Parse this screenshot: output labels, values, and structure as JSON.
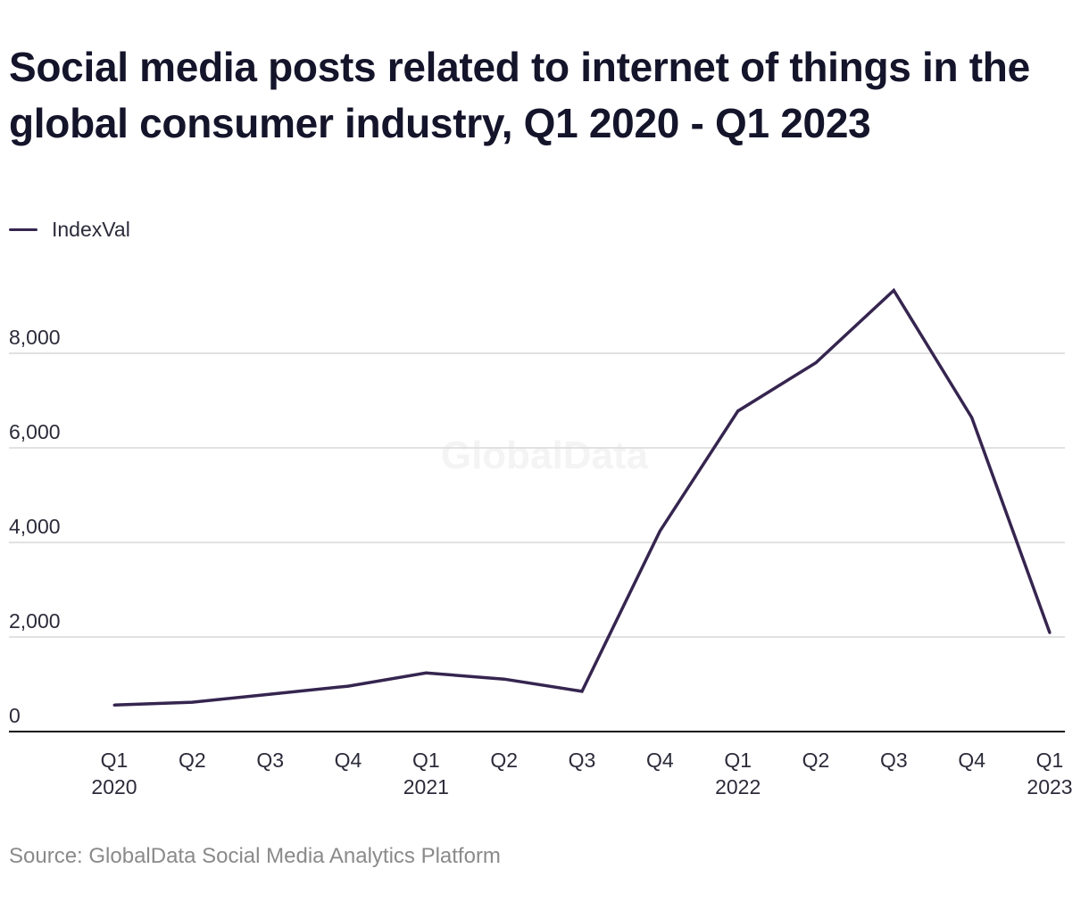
{
  "title": "Social media posts related to internet of things in the global consumer industry, Q1 2020 - Q1 2023",
  "legend": {
    "label": "IndexVal"
  },
  "watermark": "GlobalData",
  "source": "Source: GlobalData Social Media Analytics Platform",
  "colors": {
    "line": "#35254f",
    "grid": "#d9d9d9",
    "axis": "#111111",
    "tick_text": "#2b2b3a",
    "watermark": "#f4f4f4"
  },
  "chart_data": {
    "type": "line",
    "x": [
      "Q1 2020",
      "Q2 2020",
      "Q3 2020",
      "Q4 2020",
      "Q1 2021",
      "Q2 2021",
      "Q3 2021",
      "Q4 2021",
      "Q1 2022",
      "Q2 2022",
      "Q3 2022",
      "Q4 2022",
      "Q1 2023"
    ],
    "x_tick_labels": [
      [
        "Q1",
        "2020"
      ],
      [
        "Q2",
        ""
      ],
      [
        "Q3",
        ""
      ],
      [
        "Q4",
        ""
      ],
      [
        "Q1",
        "2021"
      ],
      [
        "Q2",
        ""
      ],
      [
        "Q3",
        ""
      ],
      [
        "Q4",
        ""
      ],
      [
        "Q1",
        "2022"
      ],
      [
        "Q2",
        ""
      ],
      [
        "Q3",
        ""
      ],
      [
        "Q4",
        ""
      ],
      [
        "Q1",
        "2023"
      ]
    ],
    "series": [
      {
        "name": "IndexVal",
        "values": [
          560,
          620,
          790,
          960,
          1240,
          1110,
          850,
          4240,
          6780,
          7800,
          9330,
          6640,
          2090
        ]
      }
    ],
    "yticks": [
      0,
      2000,
      4000,
      6000,
      8000
    ],
    "ytick_labels": [
      "0",
      "2,000",
      "4,000",
      "6,000",
      "8,000"
    ],
    "ylim": [
      0,
      9800
    ],
    "grid": true,
    "legend_position": "top-left",
    "xlabel": "",
    "ylabel": ""
  }
}
